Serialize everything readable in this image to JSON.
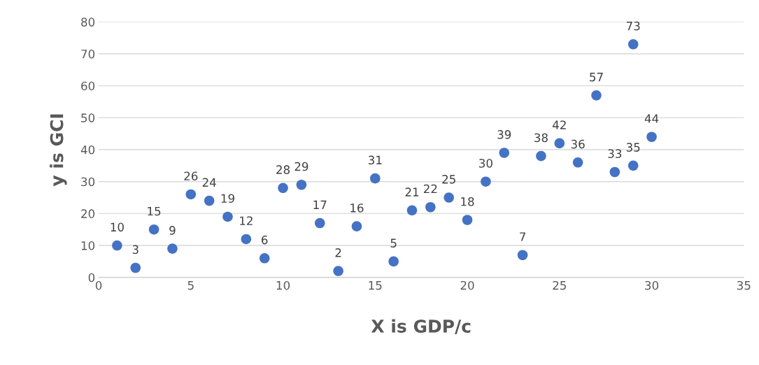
{
  "chart_data": {
    "type": "scatter",
    "xlabel": "X is GDP/c",
    "ylabel": "y is GCI",
    "x": [
      1,
      2,
      3,
      4,
      5,
      6,
      7,
      8,
      9,
      10,
      11,
      12,
      13,
      14,
      15,
      16,
      17,
      18,
      19,
      20,
      21,
      22,
      23,
      24,
      25,
      26,
      27,
      28,
      29,
      29,
      30
    ],
    "series": [
      {
        "color": "#4472c4",
        "values": [
          10,
          3,
          15,
          9,
          26,
          24,
          19,
          12,
          6,
          28,
          29,
          17,
          2,
          16,
          31,
          5,
          21,
          22,
          25,
          18,
          30,
          39,
          7,
          38,
          42,
          36,
          57,
          33,
          73,
          35,
          44
        ]
      }
    ],
    "data_labels": true,
    "marker": "circle",
    "xlim": [
      0,
      35
    ],
    "xticks": [
      0,
      5,
      10,
      15,
      20,
      25,
      30,
      35
    ],
    "ylim": [
      0,
      80
    ],
    "yticks": [
      0,
      10,
      20,
      30,
      40,
      50,
      60,
      70,
      80
    ],
    "grid": "y"
  }
}
